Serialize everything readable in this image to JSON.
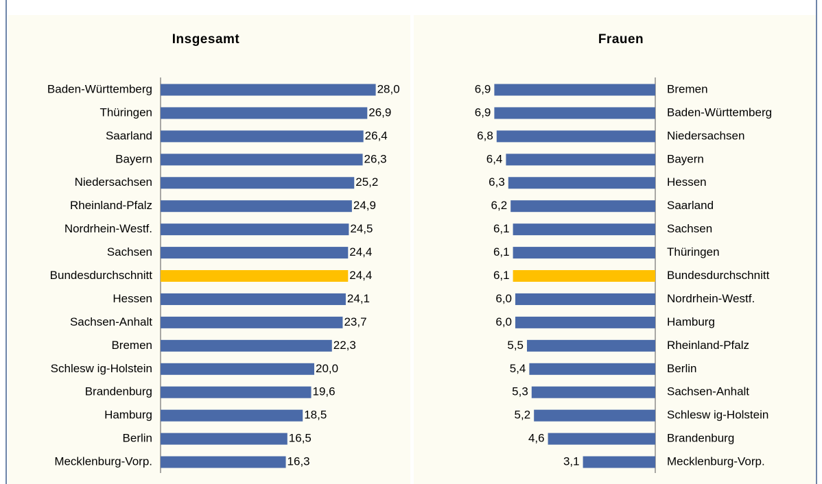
{
  "chart_data": [
    {
      "type": "bar",
      "orientation": "horizontal",
      "direction": "right",
      "title": "Insgesamt",
      "categories": [
        "Baden-Württemberg",
        "Thüringen",
        "Saarland",
        "Bayern",
        "Niedersachsen",
        "Rheinland-Pfalz",
        "Nordrhein-Westf.",
        "Sachsen",
        "Bundesdurchschnitt",
        "Hessen",
        "Sachsen-Anhalt",
        "Bremen",
        "Schlesw ig-Holstein",
        "Brandenburg",
        "Hamburg",
        "Berlin",
        "Mecklenburg-Vorp."
      ],
      "values": [
        28.0,
        26.9,
        26.4,
        26.3,
        25.2,
        24.9,
        24.5,
        24.4,
        24.4,
        24.1,
        23.7,
        22.3,
        20.0,
        19.6,
        18.5,
        16.5,
        16.3
      ],
      "value_labels": [
        "28,0",
        "26,9",
        "26,4",
        "26,3",
        "25,2",
        "24,9",
        "24,5",
        "24,4",
        "24,4",
        "24,1",
        "23,7",
        "22,3",
        "20,0",
        "19,6",
        "18,5",
        "16,5",
        "16,3"
      ],
      "colors": [
        "#4a6aa8",
        "#4a6aa8",
        "#4a6aa8",
        "#4a6aa8",
        "#4a6aa8",
        "#4a6aa8",
        "#4a6aa8",
        "#4a6aa8",
        "#ffc000",
        "#4a6aa8",
        "#4a6aa8",
        "#4a6aa8",
        "#4a6aa8",
        "#4a6aa8",
        "#4a6aa8",
        "#4a6aa8",
        "#4a6aa8"
      ]
    },
    {
      "type": "bar",
      "orientation": "horizontal",
      "direction": "left",
      "title": "Frauen",
      "categories": [
        "Bremen",
        "Baden-Württemberg",
        "Niedersachsen",
        "Bayern",
        "Hessen",
        "Saarland",
        "Sachsen",
        "Thüringen",
        "Bundesdurchschnitt",
        "Nordrhein-Westf.",
        "Hamburg",
        "Rheinland-Pfalz",
        "Berlin",
        "Sachsen-Anhalt",
        "Schlesw ig-Holstein",
        "Brandenburg",
        "Mecklenburg-Vorp."
      ],
      "values": [
        6.9,
        6.9,
        6.8,
        6.4,
        6.3,
        6.2,
        6.1,
        6.1,
        6.1,
        6.0,
        6.0,
        5.5,
        5.4,
        5.3,
        5.2,
        4.6,
        3.1
      ],
      "value_labels": [
        "6,9",
        "6,9",
        "6,8",
        "6,4",
        "6,3",
        "6,2",
        "6,1",
        "6,1",
        "6,1",
        "6,0",
        "6,0",
        "5,5",
        "5,4",
        "5,3",
        "5,2",
        "4,6",
        "3,1"
      ],
      "colors": [
        "#4a6aa8",
        "#4a6aa8",
        "#4a6aa8",
        "#4a6aa8",
        "#4a6aa8",
        "#4a6aa8",
        "#4a6aa8",
        "#4a6aa8",
        "#ffc000",
        "#4a6aa8",
        "#4a6aa8",
        "#4a6aa8",
        "#4a6aa8",
        "#4a6aa8",
        "#4a6aa8",
        "#4a6aa8",
        "#4a6aa8"
      ]
    }
  ]
}
